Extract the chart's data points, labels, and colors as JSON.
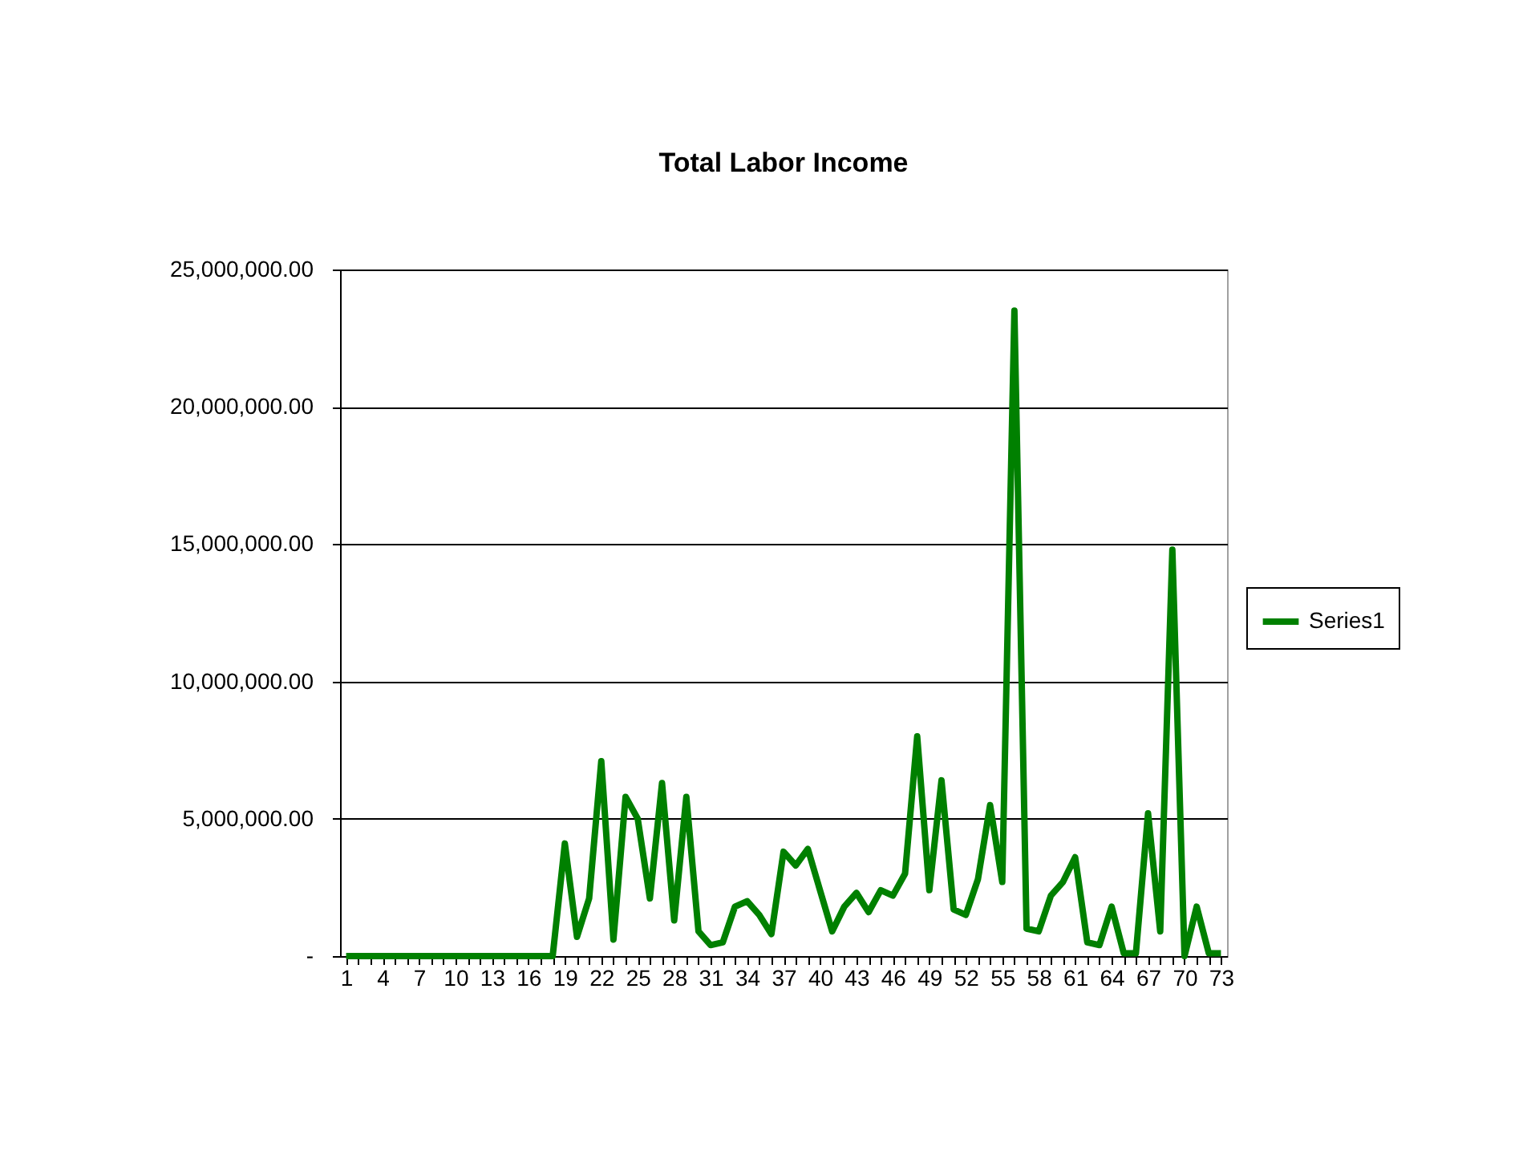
{
  "chart_data": {
    "type": "line",
    "title": "Total Labor Income",
    "categories": [
      "1",
      null,
      null,
      "4",
      null,
      null,
      "7",
      null,
      null,
      "10",
      null,
      null,
      "13",
      null,
      null,
      "16",
      null,
      null,
      "19",
      null,
      null,
      "22",
      null,
      null,
      "25",
      null,
      null,
      "28",
      null,
      null,
      "31",
      null,
      null,
      "34",
      null,
      null,
      "37",
      null,
      null,
      "40",
      null,
      null,
      "43",
      null,
      null,
      "46",
      null,
      null,
      "49",
      null,
      null,
      "52",
      null,
      null,
      "55",
      null,
      null,
      "58",
      null,
      null,
      "61",
      null,
      null,
      "64",
      null,
      null,
      "67",
      null,
      null,
      "70",
      null,
      null,
      "73"
    ],
    "series": [
      {
        "name": "Series1",
        "color": "#008000",
        "values": [
          0,
          0,
          0,
          0,
          0,
          0,
          0,
          0,
          0,
          0,
          0,
          0,
          0,
          0,
          0,
          0,
          0,
          0,
          4100000,
          700000,
          2100000,
          7100000,
          600000,
          5800000,
          5000000,
          2100000,
          6300000,
          1300000,
          5800000,
          900000,
          400000,
          500000,
          1800000,
          2000000,
          1500000,
          800000,
          3800000,
          3300000,
          3900000,
          2400000,
          900000,
          1800000,
          2300000,
          1600000,
          2400000,
          2200000,
          3000000,
          8000000,
          2400000,
          6400000,
          1700000,
          1500000,
          2800000,
          5500000,
          2700000,
          23500000,
          1000000,
          900000,
          2200000,
          2700000,
          3600000,
          500000,
          400000,
          1800000,
          100000,
          100000,
          5200000,
          900000,
          14800000,
          0,
          1800000,
          100000,
          100000
        ]
      }
    ],
    "ylim": [
      0,
      25000000
    ],
    "yticks": [
      {
        "value": 0,
        "label": "-"
      },
      {
        "value": 5000000,
        "label": "5,000,000.00"
      },
      {
        "value": 10000000,
        "label": "10,000,000.00"
      },
      {
        "value": 15000000,
        "label": "15,000,000.00"
      },
      {
        "value": 20000000,
        "label": "20,000,000.00"
      },
      {
        "value": 25000000,
        "label": "25,000,000.00"
      }
    ],
    "grid": "y",
    "legend": "right",
    "marker": "none",
    "line_style": "solid"
  }
}
